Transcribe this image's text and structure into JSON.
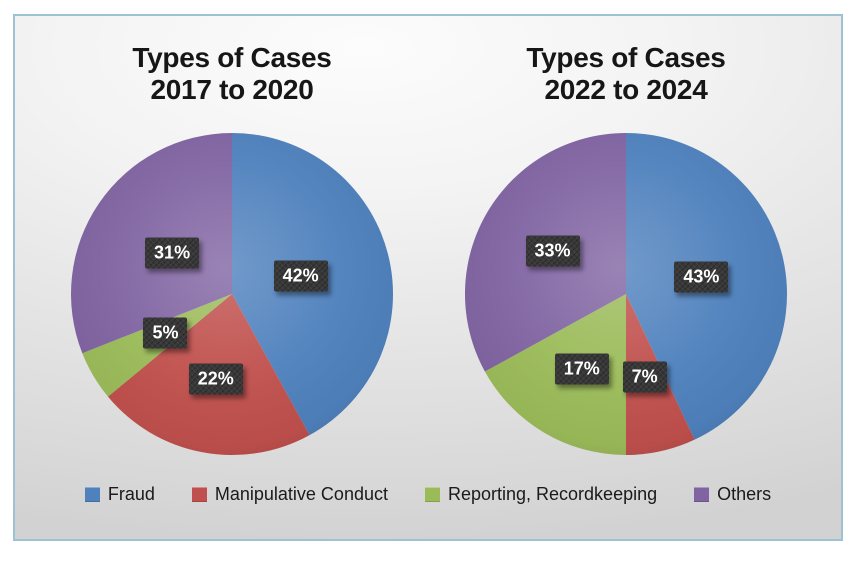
{
  "frame": {
    "border_color": "#9cc3d3"
  },
  "colors": {
    "fraud": "#4f81bd",
    "manipulative_conduct": "#c0504d",
    "reporting_recordkeeping": "#9bbb59",
    "others": "#8064a2",
    "label_box": "#383838",
    "label_text": "#ffffff",
    "title_text": "#161616"
  },
  "legend": {
    "position": "bottom",
    "items": [
      {
        "label": "Fraud",
        "color_key": "fraud"
      },
      {
        "label": "Manipulative Conduct",
        "color_key": "manipulative_conduct"
      },
      {
        "label": "Reporting, Recordkeeping",
        "color_key": "reporting_recordkeeping"
      },
      {
        "label": "Others",
        "color_key": "others"
      }
    ]
  },
  "chart_data": [
    {
      "type": "pie",
      "title": "Types of Cases 2017 to 2020",
      "title_line1": "Types of Cases",
      "title_line2": "2017 to 2020",
      "categories": [
        "Fraud",
        "Manipulative Conduct",
        "Reporting, Recordkeeping",
        "Others"
      ],
      "values": [
        42,
        22,
        5,
        31
      ],
      "labels": [
        "42%",
        "22%",
        "5%",
        "31%"
      ],
      "color_keys": [
        "fraud",
        "manipulative_conduct",
        "reporting_recordkeeping",
        "others"
      ],
      "start_angle_deg": 0,
      "direction": "clockwise",
      "label_radius_fraction": [
        0.44,
        0.54,
        0.48,
        0.45
      ]
    },
    {
      "type": "pie",
      "title": "Types of Cases 2022 to 2024",
      "title_line1": "Types of Cases",
      "title_line2": "2022 to 2024",
      "categories": [
        "Fraud",
        "Manipulative Conduct",
        "Reporting, Recordkeeping",
        "Others"
      ],
      "values": [
        43,
        7,
        17,
        33
      ],
      "labels": [
        "43%",
        "7%",
        "17%",
        "33%"
      ],
      "color_keys": [
        "fraud",
        "manipulative_conduct",
        "reporting_recordkeeping",
        "others"
      ],
      "start_angle_deg": 0,
      "direction": "clockwise",
      "label_radius_fraction": [
        0.48,
        0.53,
        0.54,
        0.53
      ]
    }
  ]
}
